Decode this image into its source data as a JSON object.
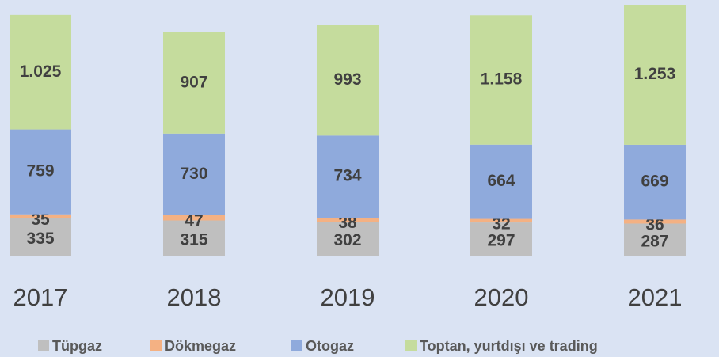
{
  "chart_data": {
    "type": "stacked_bar",
    "categories": [
      "2017",
      "2018",
      "2019",
      "2020",
      "2021"
    ],
    "series": [
      {
        "name": "Tüpgaz",
        "color": "#bfbfbf",
        "values": [
          335,
          315,
          302,
          297,
          287
        ]
      },
      {
        "name": "Dökmegaz",
        "color": "#f4b183",
        "values": [
          35,
          47,
          38,
          32,
          36
        ]
      },
      {
        "name": "Otogaz",
        "color": "#8faadc",
        "values": [
          759,
          730,
          734,
          664,
          669
        ]
      },
      {
        "name": "Toptan, yurtdışı ve trading",
        "color": "#c5dc9d",
        "values": [
          1025,
          907,
          993,
          1158,
          1253
        ],
        "value_labels": [
          "1.025",
          "907",
          "993",
          "1.158",
          "1.253"
        ]
      }
    ]
  }
}
